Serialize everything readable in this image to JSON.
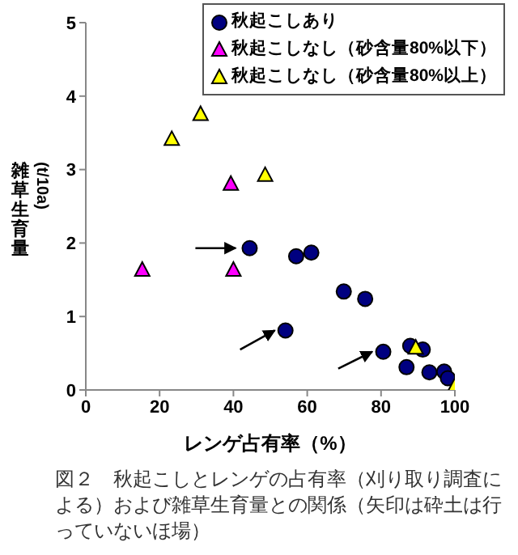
{
  "chart_data": {
    "type": "scatter",
    "xlabel": "レンゲ占有率（%）",
    "ylabel": "雑草生育量(t/10a)",
    "xlim": [
      0,
      100
    ],
    "xticks": [
      0,
      20,
      40,
      60,
      80,
      100
    ],
    "ylim": [
      0,
      5
    ],
    "yticks": [
      0,
      1,
      2,
      3,
      4,
      5
    ],
    "grid": false,
    "legend": "top right",
    "series": [
      {
        "name": "秋起こしあり",
        "color": "#000080",
        "marker": "circle",
        "x": [
          44.4,
          57,
          61.1,
          69.9,
          75.7,
          54.1,
          80.6,
          87.9,
          91.3,
          86.9,
          93.1,
          97.1,
          98.1
        ],
        "values": [
          1.93,
          1.82,
          1.87,
          1.34,
          1.24,
          0.81,
          0.52,
          0.6,
          0.55,
          0.31,
          0.24,
          0.25,
          0.16
        ]
      },
      {
        "name": "秋起こしなし（砂含量80%以下）",
        "color": "#ff00ff",
        "marker": "triangle",
        "x": [
          15.3,
          40,
          39.3
        ],
        "values": [
          1.63,
          1.63,
          2.8
        ]
      },
      {
        "name": "秋起こしなし（砂含量80%以上）",
        "color": "#ffff00",
        "marker": "triangle",
        "x": [
          31.1,
          23.3,
          48.6,
          89.4,
          100
        ],
        "values": [
          3.75,
          3.41,
          2.92,
          0.57,
          0.05
        ]
      }
    ],
    "annotations": [
      "図２　秋起こしとレンゲの占有率（刈り取り調査による）および雑草生育量との関係（矢印は砕土は行っていないほ場）"
    ]
  }
}
